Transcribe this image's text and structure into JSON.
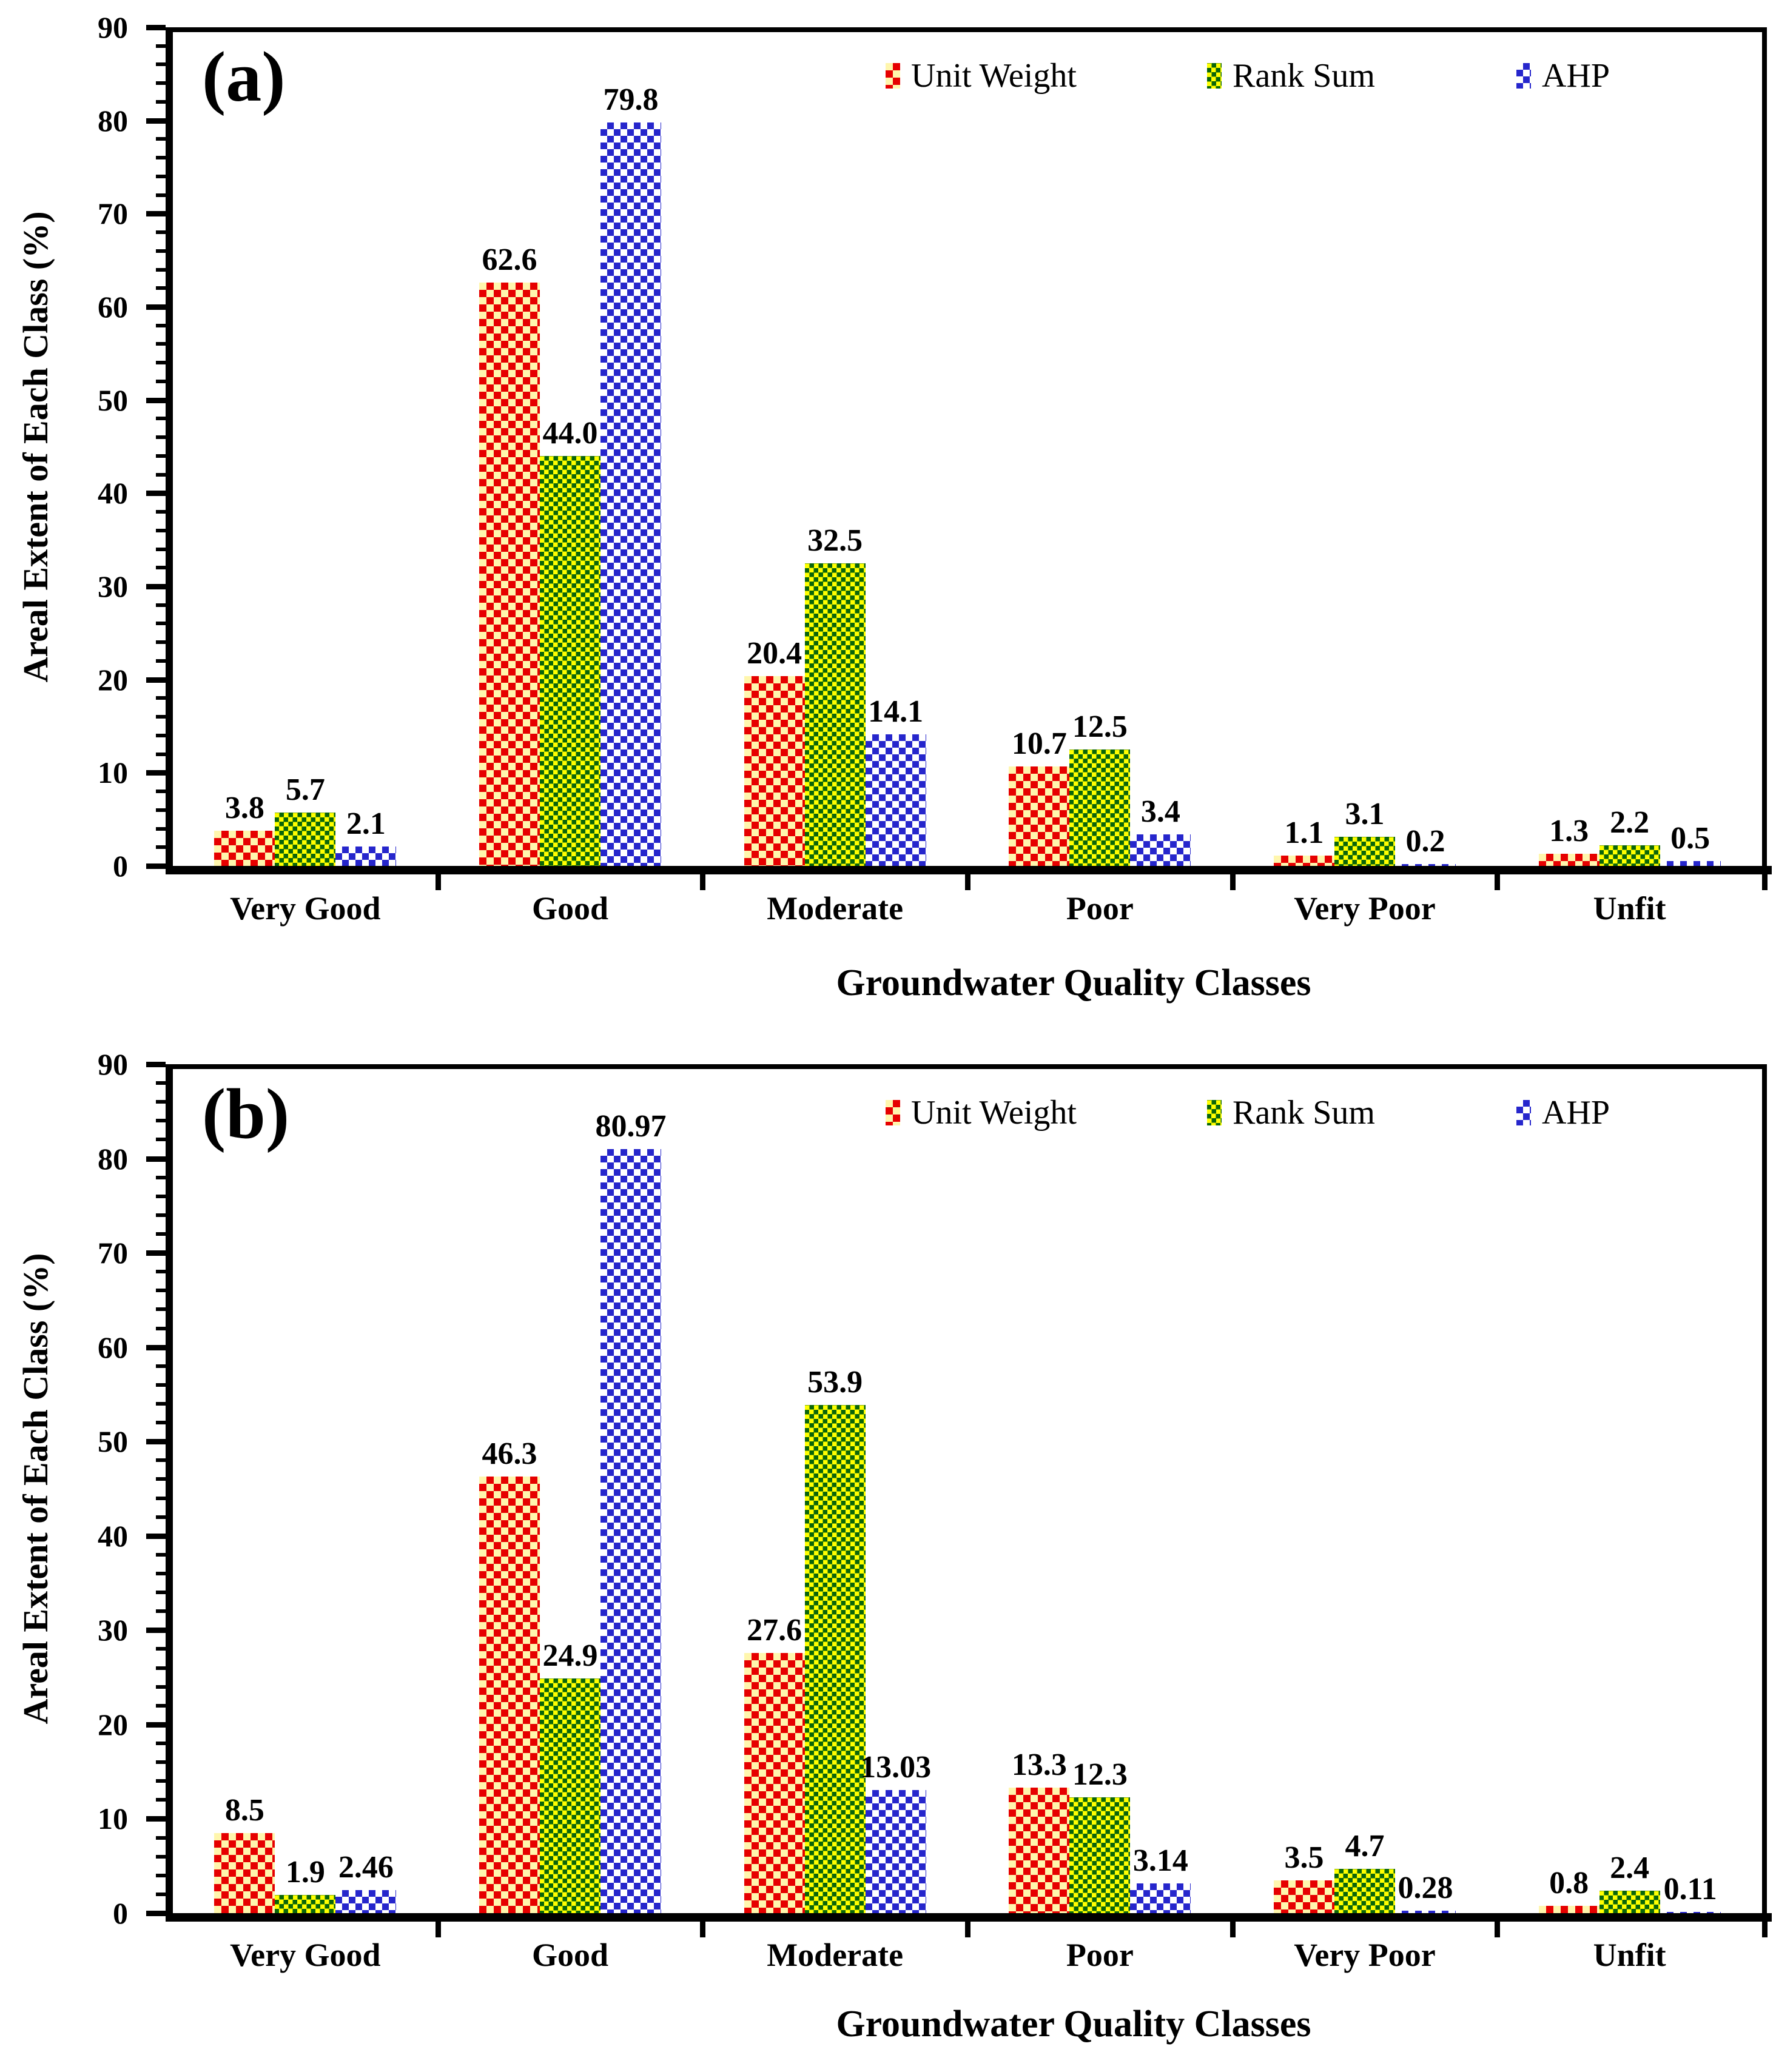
{
  "figure": {
    "panels": [
      {
        "label": "(a)"
      },
      {
        "label": "(b)"
      }
    ]
  },
  "colors": {
    "unit_weight_fg": "#e60000",
    "unit_weight_bg": "#fff6ad",
    "rank_sum_fg": "#0a650a",
    "rank_sum_bg": "#ffff00",
    "ahp_fg": "#2626cc",
    "ahp_bg": "#ffffff",
    "axis": "#000000",
    "text": "#000000"
  },
  "chart_data": [
    {
      "panel": "a",
      "type": "bar",
      "title": "(a)",
      "xlabel": "Groundwater Quality Classes",
      "ylabel": "Areal Extent of Each Class (%)",
      "ylim": [
        0,
        90
      ],
      "ytick_step": 10,
      "minor_tick_step": 2,
      "grid": false,
      "legend_position": "top-inside",
      "ytick_labels": [
        "0",
        "10",
        "20",
        "30",
        "40",
        "50",
        "60",
        "70",
        "80",
        "90"
      ],
      "categories": [
        "Very Good",
        "Good",
        "Moderate",
        "Poor",
        "Very Poor",
        "Unfit"
      ],
      "series": [
        {
          "name": "Unit Weight",
          "values": [
            3.8,
            62.6,
            20.4,
            10.7,
            1.1,
            1.3
          ]
        },
        {
          "name": "Rank Sum",
          "values": [
            5.7,
            44.0,
            32.5,
            12.5,
            3.1,
            2.2
          ]
        },
        {
          "name": "AHP",
          "values": [
            2.1,
            79.8,
            14.1,
            3.4,
            0.2,
            0.5
          ]
        }
      ],
      "data_labels": [
        [
          "3.8",
          "5.7",
          "2.1"
        ],
        [
          "62.6",
          "44.0",
          "79.8"
        ],
        [
          "20.4",
          "32.5",
          "14.1"
        ],
        [
          "10.7",
          "12.5",
          "3.4"
        ],
        [
          "1.1",
          "3.1",
          "0.2"
        ],
        [
          "1.3",
          "2.2",
          "0.5"
        ]
      ]
    },
    {
      "panel": "b",
      "type": "bar",
      "title": "(b)",
      "xlabel": "Groundwater Quality Classes",
      "ylabel": "Areal Extent of Each Class (%)",
      "ylim": [
        0,
        90
      ],
      "ytick_step": 10,
      "minor_tick_step": 2,
      "grid": false,
      "legend_position": "top-inside",
      "ytick_labels": [
        "0",
        "10",
        "20",
        "30",
        "40",
        "50",
        "60",
        "70",
        "80",
        "90"
      ],
      "categories": [
        "Very Good",
        "Good",
        "Moderate",
        "Poor",
        "Very Poor",
        "Unfit"
      ],
      "series": [
        {
          "name": "Unit Weight",
          "values": [
            8.5,
            46.3,
            27.6,
            13.3,
            3.5,
            0.8
          ]
        },
        {
          "name": "Rank Sum",
          "values": [
            1.9,
            24.9,
            53.9,
            12.3,
            4.7,
            2.4
          ]
        },
        {
          "name": "AHP",
          "values": [
            2.46,
            80.97,
            13.03,
            3.14,
            0.28,
            0.11
          ]
        }
      ],
      "data_labels": [
        [
          "8.5",
          "1.9",
          "2.46"
        ],
        [
          "46.3",
          "24.9",
          "80.97"
        ],
        [
          "27.6",
          "53.9",
          "13.03"
        ],
        [
          "13.3",
          "12.3",
          "3.14"
        ],
        [
          "3.5",
          "4.7",
          "0.28"
        ],
        [
          "0.8",
          "2.4",
          "0.11"
        ]
      ]
    }
  ]
}
